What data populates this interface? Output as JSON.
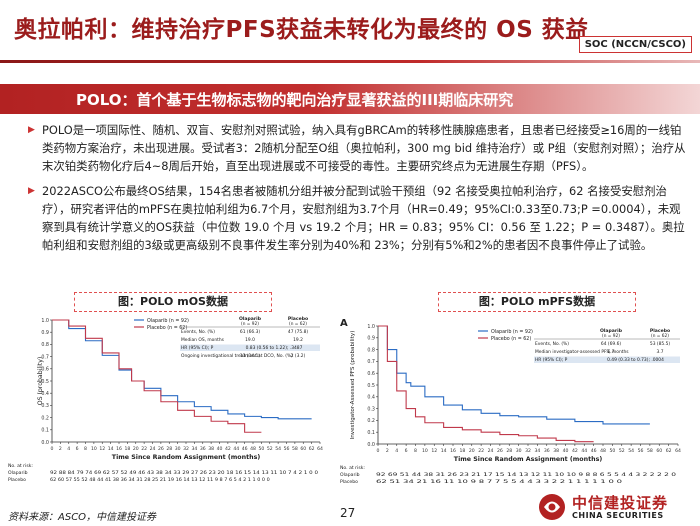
{
  "header": {
    "title": "奥拉帕利：维持治疗PFS获益未转化为最终的 OS 获益",
    "badge": "SOC (NCCN/CSCO)"
  },
  "banner": {
    "text": "POLO：首个基于生物标志物的靶向治疗显著获益的III期临床研究"
  },
  "bullets": [
    "POLO是一项国际性、随机、双盲、安慰剂对照试验，纳入具有gBRCAm的转移性胰腺癌患者，且患者已经接受≥16周的一线铂类药物方案治疗，未出现进展。受试者3：2随机分配至O组（奥拉帕利，300 mg bid 维持治疗）或 P组（安慰剂对照）；治疗从末次铂类药物化疗后4~8周后开始，直至出现进展或不可接受的毒性。主要研究终点为无进展生存期（PFS）。",
    "2022ASCO公布最终OS结果，154名患者被随机分组并被分配到试验干预组（92 名接受奥拉帕利治疗，62 名接受安慰剂治疗），研究者评估的mPFS在奥拉帕利组为6.7个月，安慰剂组为3.7个月（HR=0.49；95%CI:0.33至0.73;P =0.0004），未观察到具有统计学意义的OS获益（中位数 19.0 个月 vs 19.2 个月；HR = 0.83；95% CI：0.56 至 1.22；P = 0.3487）。奥拉帕利组和安慰剂组的3级或更高级别不良事件发生率分别为40%和 23%；分别有5%和2%的患者因不良事件停止了试验。"
  ],
  "captions": {
    "left": "图：POLO mOS数据",
    "right": "图：POLO mPFS数据"
  },
  "os_chart": {
    "y_axis_label": "OS (probability)",
    "x_axis_label": "Time Since Random Assignment (months)",
    "legend": {
      "olaparib": "Olaparib (n = 92)",
      "placebo": "Placebo (n = 62)"
    },
    "table": {
      "col1": "Olaparib\n(n = 92)",
      "col2": "Placebo\n(n = 62)",
      "rows": [
        [
          "Events, No. (%)",
          "61 (66.3)",
          "47 (75.8)"
        ],
        [
          "Median OS, months",
          "19.0",
          "19.2"
        ],
        [
          "HR (95% CI); P",
          "0.83 (0.56 to 1.22); .3487",
          ""
        ],
        [
          "Ongoing investigational treatment at DCO, No. (%)",
          "13 (14.1)",
          "2 (3.2)"
        ]
      ]
    },
    "at_risk": {
      "label": "No. at risk:",
      "olaparib_label": "Olaparib",
      "placebo_label": "Placebo",
      "olaparib": "92 88 84 79 74 69 62 57 52 49 46 43 38 34 33 29 27 26 23 20 18 16 15 14 13 11 10 7 4 2 1 0 0",
      "placebo": "62 60 57 55 52 48 44 41 38 36 34 31 28 25 21 19 16 14 13 12 11 9 8 7 6 5 4 2 1 1 0 0 0"
    }
  },
  "pfs_chart": {
    "panel_label": "A",
    "y_axis_label": "Investigator-Assessed PFS (probability)",
    "x_axis_label": "Time Since Random Assignment (months)",
    "legend": {
      "olaparib": "Olaparib (n = 92)",
      "placebo": "Placebo (n = 62)"
    },
    "table": {
      "col1": "Olaparib\n(n = 92)",
      "col2": "Placebo\n(n = 62)",
      "rows": [
        [
          "Events, No. (%)",
          "64 (69.6)",
          "53 (85.5)"
        ],
        [
          "Median investigator-assessed PFS, months",
          "6.7",
          "3.7"
        ],
        [
          "HR (95% CI); P",
          "0.49 (0.33 to 0.73); .0004",
          ""
        ]
      ]
    },
    "at_risk": {
      "label": "No. at risk:",
      "olaparib_label": "Olaparib",
      "placebo_label": "Placebo",
      "olaparib": "92 69 51 44 38 31 26 23 21 17 15 14 13 12 11 10 10 9 8 8 6 5 5 4 4 3 2 2 2 2 0",
      "placebo": "62 51 34 21 16 11 10 9 8 7 7 5 5 4 4 3 3 2 2 1 1 1 1 1 0 0"
    }
  },
  "chart_data": [
    {
      "type": "line",
      "title": "",
      "xlabel": "Time Since Random Assignment (months)",
      "ylabel": "OS (probability)",
      "xlim": [
        0,
        64
      ],
      "ylim": [
        0,
        1.0
      ],
      "x_ticks": [
        0,
        2,
        4,
        6,
        8,
        10,
        12,
        14,
        16,
        18,
        20,
        22,
        24,
        26,
        28,
        30,
        32,
        34,
        36,
        38,
        40,
        42,
        44,
        46,
        48,
        50,
        52,
        54,
        56,
        58,
        60,
        62,
        64
      ],
      "y_ticks": [
        0,
        0.1,
        0.2,
        0.3,
        0.4,
        0.5,
        0.6,
        0.7,
        0.8,
        0.9,
        1.0
      ],
      "series": [
        {
          "name": "Olaparib (n = 92)",
          "color": "#2b6cc4",
          "x": [
            0,
            4,
            8,
            12,
            16,
            19,
            22,
            26,
            30,
            34,
            38,
            42,
            46,
            50,
            54,
            58,
            62
          ],
          "y": [
            1.0,
            0.93,
            0.83,
            0.71,
            0.59,
            0.5,
            0.44,
            0.38,
            0.33,
            0.29,
            0.26,
            0.23,
            0.21,
            0.2,
            0.19,
            0.19,
            0.19
          ]
        },
        {
          "name": "Placebo (n = 62)",
          "color": "#c0394b",
          "x": [
            0,
            4,
            8,
            12,
            16,
            19,
            22,
            26,
            30,
            34,
            38,
            42,
            46,
            50
          ],
          "y": [
            1.0,
            0.95,
            0.85,
            0.73,
            0.6,
            0.5,
            0.42,
            0.33,
            0.26,
            0.21,
            0.17,
            0.15,
            0.08,
            0.08
          ]
        }
      ]
    },
    {
      "type": "line",
      "title": "",
      "xlabel": "Time Since Random Assignment (months)",
      "ylabel": "Investigator-Assessed PFS (probability)",
      "xlim": [
        0,
        64
      ],
      "ylim": [
        0,
        1.0
      ],
      "x_ticks": [
        0,
        2,
        4,
        6,
        8,
        10,
        12,
        14,
        16,
        18,
        20,
        22,
        24,
        26,
        28,
        30,
        32,
        34,
        36,
        38,
        40,
        42,
        44,
        46,
        48,
        50,
        52,
        54,
        56,
        58,
        60,
        62,
        64
      ],
      "y_ticks": [
        0,
        0.1,
        0.2,
        0.3,
        0.4,
        0.5,
        0.6,
        0.7,
        0.8,
        0.9,
        1.0
      ],
      "series": [
        {
          "name": "Olaparib (n = 92)",
          "color": "#2b6cc4",
          "x": [
            0,
            2,
            4,
            6,
            7,
            10,
            14,
            18,
            22,
            26,
            30,
            36,
            42,
            48,
            54,
            58
          ],
          "y": [
            1.0,
            0.8,
            0.6,
            0.52,
            0.49,
            0.4,
            0.33,
            0.29,
            0.26,
            0.24,
            0.23,
            0.21,
            0.19,
            0.17,
            0.17,
            0.17
          ]
        },
        {
          "name": "Placebo (n = 62)",
          "color": "#c0394b",
          "x": [
            0,
            2,
            4,
            6,
            8,
            10,
            14,
            18,
            22,
            26,
            30,
            34,
            38,
            42,
            46
          ],
          "y": [
            1.0,
            0.7,
            0.45,
            0.3,
            0.23,
            0.18,
            0.14,
            0.12,
            0.1,
            0.08,
            0.07,
            0.05,
            0.03,
            0.02,
            0.02
          ]
        }
      ]
    }
  ],
  "footer": {
    "source": "资料来源：ASCO，中信建投证券",
    "page": "27"
  },
  "logo": {
    "cn": "中信建投证券",
    "en": "CHINA SECURITIES"
  }
}
